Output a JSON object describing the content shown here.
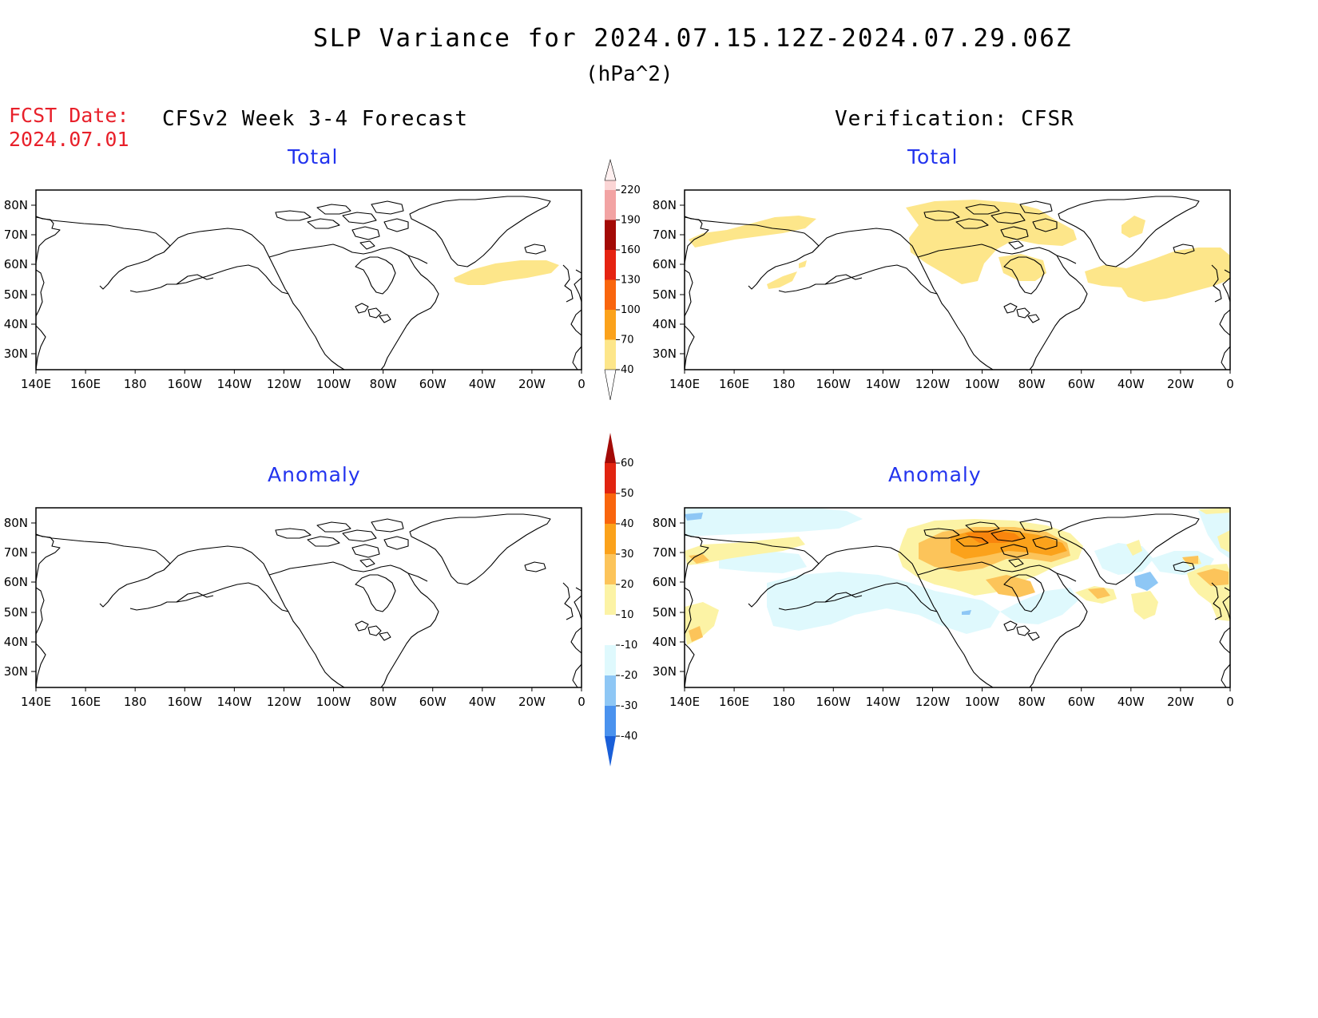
{
  "title": "SLP Variance for 2024.07.15.12Z-2024.07.29.06Z",
  "units": "(hPa^2)",
  "fcst_label": "FCST Date:",
  "fcst_date": "2024.07.01",
  "left_column_title": "CFSv2 Week 3-4 Forecast",
  "right_column_title": "Verification: CFSR",
  "panel_titles": {
    "top_left": "Total",
    "top_right": "Total",
    "bottom_left": "Anomaly",
    "bottom_right": "Anomaly"
  },
  "lat_labels": [
    "80N",
    "70N",
    "60N",
    "50N",
    "40N",
    "30N"
  ],
  "lon_labels": [
    "140E",
    "160E",
    "180",
    "160W",
    "140W",
    "120W",
    "100W",
    "80W",
    "60W",
    "40W",
    "20W",
    "0"
  ],
  "total_colorbar": {
    "labels": [
      "40",
      "70",
      "100",
      "130",
      "160",
      "190",
      "220"
    ],
    "colors": [
      "#fde68a",
      "#fba21b",
      "#f9650d",
      "#e52311",
      "#a30a06",
      "#f2a3a3",
      "#fbd5d5",
      "#fff0f0"
    ]
  },
  "anomaly_colorbar": {
    "labels": [
      "60",
      "50",
      "40",
      "30",
      "20",
      "10",
      "-10",
      "-20",
      "-30",
      "-40"
    ],
    "colors": [
      "#a30a06",
      "#e12410",
      "#f9650d",
      "#fba21b",
      "#fcc45a",
      "#fcf3a5",
      "#ffffff",
      "#dff9fd",
      "#8ec7f5",
      "#4a92ee",
      "#1a5fd8"
    ]
  }
}
